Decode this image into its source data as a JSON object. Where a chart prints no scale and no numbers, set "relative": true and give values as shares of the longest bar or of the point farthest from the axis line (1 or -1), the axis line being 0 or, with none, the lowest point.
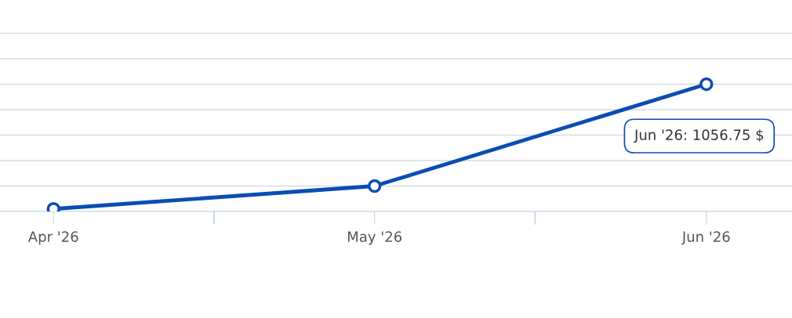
{
  "chart_data": {
    "type": "line",
    "relative": true,
    "x": [
      "2026-04",
      "2026-05",
      "2026-06"
    ],
    "series": [
      {
        "color": "#0a4db3",
        "values": [
          0.02,
          0.2,
          1
        ]
      }
    ],
    "xlim": [
      "2026-03-27",
      "2026-06-09"
    ],
    "xticks": [
      {
        "value": "2026-04",
        "label": "Apr '26"
      },
      {
        "value": "2026-04-16",
        "label": null
      },
      {
        "value": "2026-05",
        "label": "May '26"
      },
      {
        "value": "2026-05-16",
        "label": null
      },
      {
        "value": "2026-06",
        "label": "Jun '26"
      }
    ],
    "grid": "y",
    "marker": "circle",
    "line_style": "solid",
    "annotations": [
      "Jun '26: 1056.75 $"
    ]
  }
}
